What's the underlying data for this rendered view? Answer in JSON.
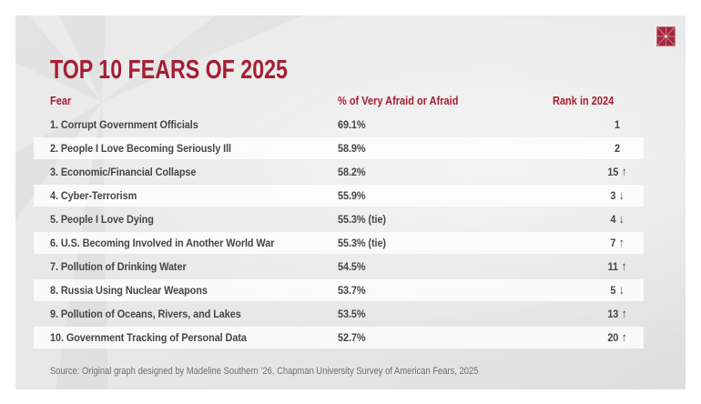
{
  "colors": {
    "accent": "#A41E35",
    "row_text": "#464646",
    "source_text": "#6F6F6F",
    "logo_red": "#A62639",
    "logo_lines": "#C4808B",
    "row_band": "#FAFAFA",
    "panel_base": "#E7E7E7"
  },
  "title": "TOP 10 FEARS OF 2025",
  "logo": {
    "name": "chapman-window-logo"
  },
  "icons": {
    "up_arrow": "↑",
    "down_arrow": "↓"
  },
  "table": {
    "headers": {
      "fear": "Fear",
      "percent": "% of Very Afraid or Afraid",
      "rank": "Rank in 2024"
    },
    "rows": [
      {
        "fear": "1. Corrupt Government Officials",
        "percent": "69.1%",
        "rank": "1",
        "arrow": ""
      },
      {
        "fear": "2. People I Love Becoming Seriously Ill",
        "percent": "58.9%",
        "rank": "2",
        "arrow": ""
      },
      {
        "fear": "3. Economic/Financial Collapse",
        "percent": "58.2%",
        "rank": "15",
        "arrow": "up"
      },
      {
        "fear": "4. Cyber-Terrorism",
        "percent": "55.9%",
        "rank": "3",
        "arrow": "down"
      },
      {
        "fear": "5. People I Love Dying",
        "percent": "55.3% (tie)",
        "rank": "4",
        "arrow": "down"
      },
      {
        "fear": "6. U.S. Becoming Involved in Another World War",
        "percent": "55.3% (tie)",
        "rank": "7",
        "arrow": "up"
      },
      {
        "fear": "7. Pollution of Drinking Water",
        "percent": "54.5%",
        "rank": "11",
        "arrow": "up"
      },
      {
        "fear": "8. Russia Using Nuclear Weapons",
        "percent": "53.7%",
        "rank": "5",
        "arrow": "down"
      },
      {
        "fear": "9. Pollution of Oceans, Rivers, and Lakes",
        "percent": "53.5%",
        "rank": "13",
        "arrow": "up"
      },
      {
        "fear": "10. Government Tracking of Personal Data",
        "percent": "52.7%",
        "rank": "20",
        "arrow": "up"
      }
    ]
  },
  "source": "Source: Original graph designed by Madeline Southern ’26, Chapman University Survey of American Fears, 2025",
  "chart_data": {
    "type": "table",
    "title": "TOP 10 FEARS OF 2025",
    "columns": [
      "Fear",
      "% of Very Afraid or Afraid",
      "Rank in 2024"
    ],
    "categories": [
      "Corrupt Government Officials",
      "People I Love Becoming Seriously Ill",
      "Economic/Financial Collapse",
      "Cyber-Terrorism",
      "People I Love Dying",
      "U.S. Becoming Involved in Another World War",
      "Pollution of Drinking Water",
      "Russia Using Nuclear Weapons",
      "Pollution of Oceans, Rivers, and Lakes",
      "Government Tracking of Personal Data"
    ],
    "percent_very_afraid_or_afraid": [
      69.1,
      58.9,
      58.2,
      55.9,
      55.3,
      55.3,
      54.5,
      53.7,
      53.5,
      52.7
    ],
    "tie_flags": [
      false,
      false,
      false,
      false,
      true,
      true,
      false,
      false,
      false,
      false
    ],
    "rank_in_2025": [
      1,
      2,
      3,
      4,
      5,
      6,
      7,
      8,
      9,
      10
    ],
    "rank_in_2024": [
      1,
      2,
      15,
      3,
      4,
      7,
      11,
      5,
      13,
      20
    ],
    "rank_change_direction": [
      "",
      "",
      "up",
      "down",
      "down",
      "up",
      "up",
      "down",
      "up",
      "up"
    ],
    "annotations": [
      "Source: Original graph designed by Madeline Southern ’26, Chapman University Survey of American Fears, 2025"
    ]
  }
}
